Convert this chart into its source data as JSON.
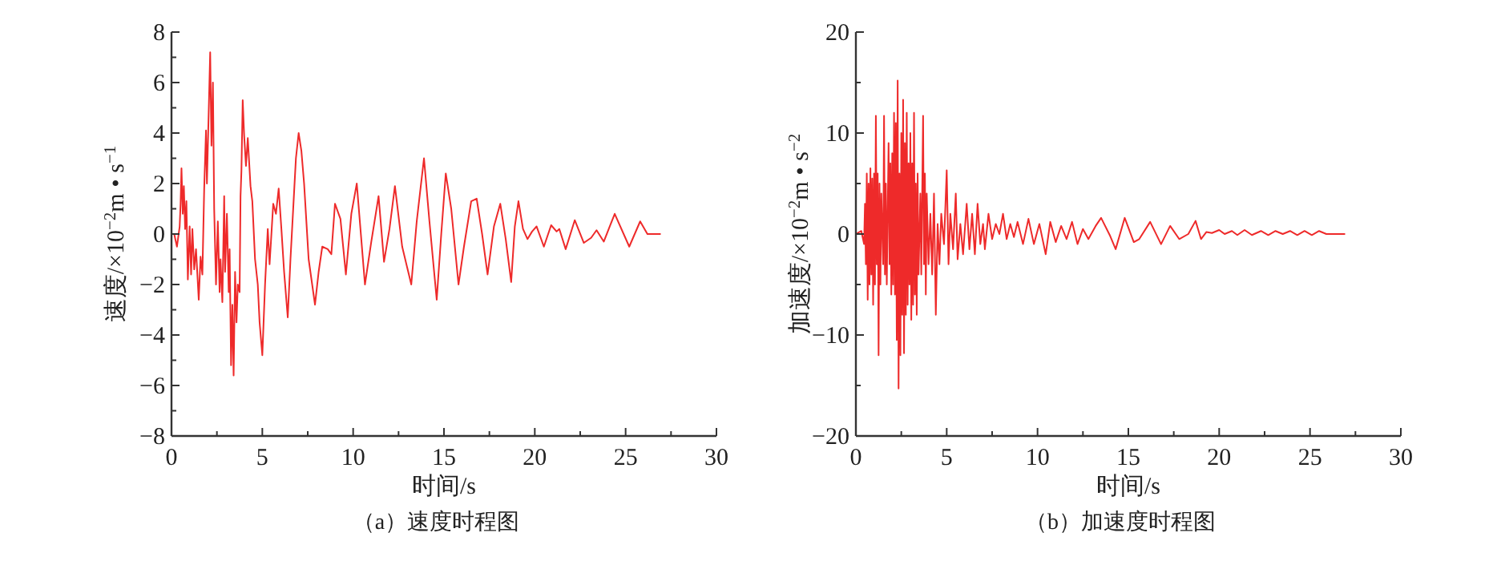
{
  "chart_data": [
    {
      "type": "line",
      "title": "（a）速度时程图",
      "xlabel": "时间/s",
      "ylabel": "速度/×10$^{−2}$m • s$^{−1}$",
      "xlim": [
        0,
        30
      ],
      "xticks": [
        0,
        {
          "value": 2.5,
          "label": null
        },
        5,
        {
          "value": 7.5,
          "label": null
        },
        10,
        {
          "value": 12.5,
          "label": null
        },
        15,
        {
          "value": 17.5,
          "label": null
        },
        20,
        {
          "value": 22.5,
          "label": null
        },
        25,
        {
          "value": 27.5,
          "label": null
        },
        30
      ],
      "ylim": [
        -8,
        8
      ],
      "yticks": [
        {
          "value": -8,
          "label": "−8"
        },
        {
          "value": -7,
          "label": null
        },
        {
          "value": -6,
          "label": "−6"
        },
        {
          "value": -5,
          "label": null
        },
        {
          "value": -4,
          "label": "−4"
        },
        {
          "value": -3,
          "label": null
        },
        {
          "value": -2,
          "label": "−2"
        },
        {
          "value": -1,
          "label": null
        },
        0,
        {
          "value": 1,
          "label": null
        },
        2,
        {
          "value": 3,
          "label": null
        },
        4,
        {
          "value": 5,
          "label": null
        },
        6,
        {
          "value": 7,
          "label": null
        },
        8
      ],
      "grid": false,
      "marker": "none",
      "line_style": "solid",
      "series": [
        {
          "color": "#ee2a2a",
          "x": [
            0,
            0.15,
            0.3,
            0.45,
            0.5,
            0.55,
            0.62,
            0.68,
            0.75,
            0.82,
            0.9,
            1.0,
            1.08,
            1.15,
            1.25,
            1.35,
            1.5,
            1.6,
            1.7,
            1.8,
            1.9,
            1.95,
            2.13,
            2.2,
            2.28,
            2.35,
            2.45,
            2.55,
            2.65,
            2.7,
            2.8,
            2.9,
            2.95,
            3.05,
            3.15,
            3.2,
            3.28,
            3.35,
            3.42,
            3.5,
            3.58,
            3.65,
            3.75,
            3.8,
            3.85,
            3.92,
            4.0,
            4.1,
            4.2,
            4.35,
            4.45,
            4.6,
            4.75,
            4.85,
            5.0,
            5.15,
            5.3,
            5.4,
            5.6,
            5.75,
            5.9,
            6.05,
            6.2,
            6.4,
            6.55,
            6.7,
            6.85,
            7.0,
            7.15,
            7.3,
            7.55,
            7.9,
            8.1,
            8.3,
            8.6,
            8.8,
            9.0,
            9.3,
            9.6,
            9.9,
            10.2,
            10.65,
            11.0,
            11.4,
            11.7,
            12.0,
            12.3,
            12.7,
            13.2,
            13.5,
            13.9,
            14.2,
            14.6,
            14.85,
            15.1,
            15.4,
            15.8,
            16.1,
            16.5,
            16.8,
            17.1,
            17.4,
            17.75,
            18.1,
            18.4,
            18.7,
            18.9,
            19.1,
            19.35,
            19.6,
            19.85,
            20.1,
            20.5,
            20.9,
            21.2,
            21.35,
            21.7,
            22.2,
            22.7,
            23.1,
            23.4,
            23.8,
            24.4,
            25.2,
            25.8,
            26.2,
            26.9
          ],
          "values": [
            0,
            0,
            -0.5,
            0.3,
            1.2,
            2.6,
            0.8,
            1.9,
            0.2,
            1.3,
            -1.8,
            0.3,
            -1.6,
            0.2,
            -1.4,
            -0.6,
            -2.6,
            -0.9,
            -1.6,
            1.8,
            4.1,
            2.0,
            7.2,
            3.5,
            6.0,
            1.0,
            -2.0,
            0.5,
            -2.3,
            -1.0,
            -2.7,
            1.5,
            -1.5,
            0.8,
            -2.3,
            -0.6,
            -5.2,
            -2.8,
            -5.6,
            -1.5,
            -3.5,
            -2.0,
            -2.3,
            1.5,
            2.5,
            5.3,
            3.9,
            2.7,
            3.8,
            1.9,
            1.3,
            -1.0,
            -2.0,
            -3.5,
            -4.8,
            -2.0,
            0.2,
            -1.2,
            1.2,
            0.8,
            1.8,
            0.2,
            -1.5,
            -3.3,
            -1.0,
            1.0,
            3.0,
            4.0,
            3.3,
            2.0,
            -1.0,
            -2.8,
            -1.5,
            -0.5,
            -0.6,
            -0.8,
            1.2,
            0.6,
            -1.6,
            0.8,
            2.0,
            -2.0,
            -0.3,
            1.5,
            -1.1,
            0.2,
            1.9,
            -0.5,
            -2.0,
            0.5,
            3.0,
            0.5,
            -2.6,
            0,
            2.4,
            1.0,
            -2.0,
            -0.5,
            1.3,
            1.4,
            0,
            -1.6,
            0.3,
            1.2,
            -0.2,
            -1.9,
            0.3,
            1.3,
            0.2,
            -0.2,
            0.1,
            0.3,
            -0.5,
            0.35,
            0.1,
            0.2,
            -0.6,
            0.55,
            -0.35,
            -0.15,
            0.15,
            -0.3,
            0.8,
            -0.5,
            0.5,
            0,
            0
          ]
        }
      ]
    },
    {
      "type": "line",
      "title": "（b）加速度时程图",
      "xlabel": "时间/s",
      "ylabel": "加速度/×10$^{−2}$m • s$^{−2}$",
      "xlim": [
        0,
        30
      ],
      "xticks": [
        0,
        {
          "value": 2.5,
          "label": null
        },
        5,
        {
          "value": 7.5,
          "label": null
        },
        10,
        {
          "value": 12.5,
          "label": null
        },
        15,
        {
          "value": 17.5,
          "label": null
        },
        20,
        {
          "value": 22.5,
          "label": null
        },
        25,
        {
          "value": 27.5,
          "label": null
        },
        30
      ],
      "ylim": [
        -20,
        20
      ],
      "yticks": [
        {
          "value": -20,
          "label": "−20"
        },
        {
          "value": -15,
          "label": null
        },
        {
          "value": -10,
          "label": "−10"
        },
        {
          "value": -5,
          "label": null
        },
        0,
        {
          "value": 5,
          "label": null
        },
        10,
        {
          "value": 15,
          "label": null
        },
        20
      ],
      "grid": false,
      "marker": "none",
      "line_style": "solid",
      "series": [
        {
          "color": "#ee2a2a",
          "x": [
            0,
            0.3,
            0.45,
            0.5,
            0.55,
            0.6,
            0.65,
            0.7,
            0.75,
            0.8,
            0.85,
            0.9,
            0.95,
            1.0,
            1.05,
            1.1,
            1.15,
            1.2,
            1.25,
            1.3,
            1.35,
            1.4,
            1.5,
            1.55,
            1.6,
            1.65,
            1.7,
            1.8,
            1.85,
            1.9,
            1.95,
            2.0,
            2.05,
            2.1,
            2.15,
            2.2,
            2.25,
            2.3,
            2.35,
            2.4,
            2.45,
            2.5,
            2.55,
            2.6,
            2.65,
            2.7,
            2.75,
            2.8,
            2.85,
            2.9,
            2.95,
            3.0,
            3.05,
            3.1,
            3.15,
            3.2,
            3.25,
            3.3,
            3.35,
            3.4,
            3.45,
            3.55,
            3.6,
            3.7,
            3.75,
            3.8,
            3.85,
            3.9,
            4.0,
            4.1,
            4.2,
            4.3,
            4.4,
            4.5,
            4.6,
            4.7,
            4.85,
            5.0,
            5.1,
            5.2,
            5.35,
            5.5,
            5.6,
            5.75,
            5.9,
            6.1,
            6.25,
            6.4,
            6.55,
            6.7,
            6.85,
            7.0,
            7.1,
            7.3,
            7.5,
            7.7,
            7.9,
            8.1,
            8.3,
            8.5,
            8.7,
            8.9,
            9.2,
            9.5,
            9.8,
            10.1,
            10.45,
            10.7,
            11.0,
            11.3,
            11.6,
            11.9,
            12.2,
            12.5,
            12.8,
            13.2,
            13.5,
            14.0,
            14.3,
            14.8,
            15.3,
            15.6,
            16.2,
            16.8,
            17.3,
            17.8,
            18.3,
            18.7,
            19.0,
            19.3,
            19.6,
            20.0,
            20.3,
            20.7,
            21.0,
            21.4,
            21.8,
            22.3,
            22.7,
            23.1,
            23.5,
            23.9,
            24.3,
            24.7,
            25.1,
            25.5,
            25.9,
            26.5,
            26.9
          ],
          "values": [
            0,
            0.3,
            -1,
            3,
            -3,
            6,
            -6.5,
            5,
            -5,
            6.5,
            -4,
            5.5,
            -7,
            6,
            -5,
            11.7,
            -3,
            6,
            -12,
            5,
            -5,
            4,
            -3,
            11.7,
            -4,
            5,
            -5,
            9,
            -3,
            7,
            -6,
            8,
            -5,
            12,
            -6,
            11,
            -10.5,
            15.2,
            -15.3,
            6,
            -12,
            10,
            -8,
            13.3,
            -11.8,
            9,
            -8,
            12,
            -7,
            7,
            -5,
            10,
            -8.5,
            7,
            -7,
            12,
            -6,
            5,
            -8,
            6,
            -4,
            4,
            -4,
            11.7,
            -3,
            6,
            -6,
            4,
            -3,
            2,
            -4,
            4,
            -8,
            1,
            -3,
            2,
            -1,
            6.3,
            -3,
            2,
            -1.5,
            4,
            -2.5,
            1,
            -2,
            3,
            -1.5,
            2,
            -2,
            3,
            -1,
            1,
            -1.5,
            2,
            -0.5,
            1,
            0,
            2,
            -0.5,
            1,
            -0.3,
            1.2,
            -1,
            1.5,
            -1,
            1,
            -2,
            1.2,
            -0.8,
            0.8,
            -0.5,
            1.2,
            -1,
            0.5,
            -0.5,
            0.8,
            1.6,
            -0.2,
            -1.5,
            1.6,
            -0.8,
            -0.5,
            1.2,
            -1.0,
            0.8,
            -0.5,
            0,
            1.3,
            -0.5,
            0.2,
            0.1,
            0.4,
            0,
            0.3,
            -0.1,
            0.4,
            -0.1,
            0.3,
            -0.1,
            0.3,
            0,
            0.3,
            -0.1,
            0.3,
            -0.1,
            0.3,
            0,
            0,
            0
          ]
        }
      ]
    }
  ]
}
